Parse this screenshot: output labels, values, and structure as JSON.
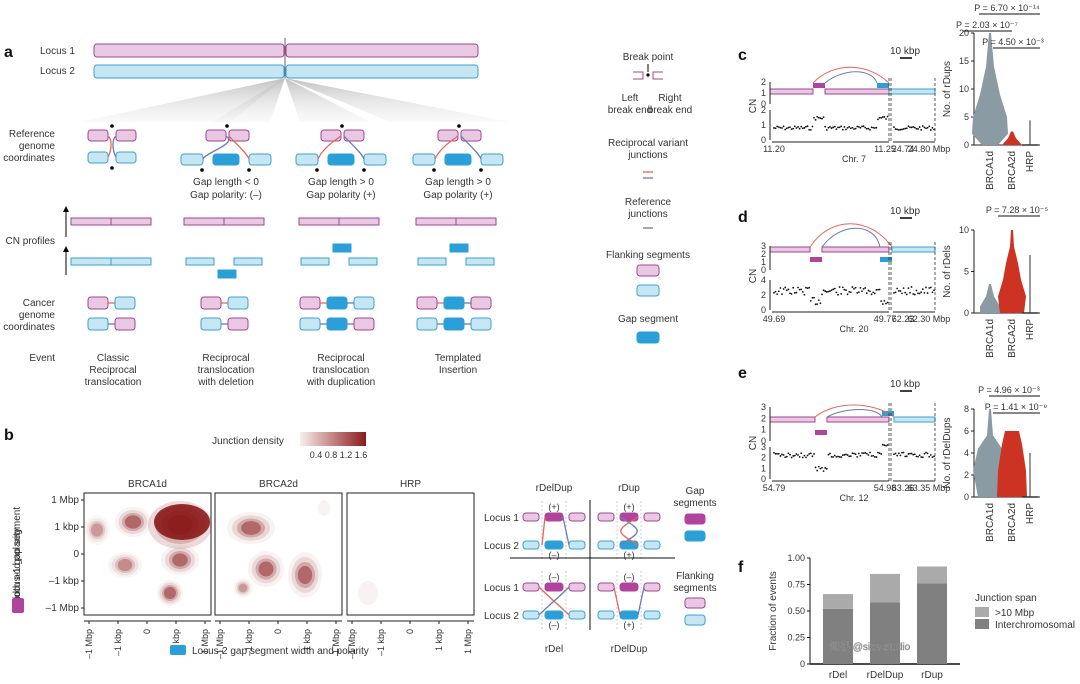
{
  "panel_labels": {
    "a": "a",
    "b": "b",
    "c": "c",
    "d": "d",
    "e": "e",
    "f": "f"
  },
  "colors": {
    "locus1_fill": "#e8c8e3",
    "locus1_stroke": "#a0468f",
    "locus2_fill": "#c6e6f4",
    "locus2_stroke": "#3ba3cf",
    "gap1": "#b0449c",
    "gap2": "#2b9fd8",
    "junction_red": "#e8665a",
    "junction_blue": "#6a7bb8",
    "density_dark": "#8b1a1a",
    "violin_grey": "#8a9ba3",
    "violin_red": "#cc3322",
    "bar_light": "#aaaaaa",
    "bar_dark": "#808080"
  },
  "panel_a": {
    "locus1": "Locus 1",
    "locus2": "Locus 2",
    "rows": {
      "reference": "Reference\ngenome\ncoordinates",
      "cn": "CN profiles",
      "cancer": "Cancer\ngenome\ncoordinates",
      "event": "Event"
    },
    "columns": [
      {
        "gap_length": "",
        "gap_polarity": "",
        "event": [
          "Classic",
          "Reciprocal",
          "translocation"
        ]
      },
      {
        "gap_length": "Gap length < 0",
        "gap_polarity": "Gap polarity: (–)",
        "event": [
          "Reciprocal",
          "translocation",
          "with deletion"
        ]
      },
      {
        "gap_length": "Gap length > 0",
        "gap_polarity": "Gap polarity (+)",
        "event": [
          "Reciprocal",
          "translocation",
          "with duplication"
        ]
      },
      {
        "gap_length": "Gap length > 0",
        "gap_polarity": "Gap polarity (+)",
        "event": [
          "Templated",
          "Insertion"
        ]
      }
    ],
    "legend": {
      "break_point": "Break point",
      "left_break_end": [
        "Left",
        "break end"
      ],
      "right_break_end": [
        "Right",
        "break end"
      ],
      "reciprocal": [
        "Reciprocal variant",
        "junctions"
      ],
      "reference": [
        "Reference",
        "junctions"
      ],
      "flanking": "Flanking segments",
      "gap": "Gap segment"
    }
  },
  "panel_b": {
    "legend_title": "Junction density",
    "legend_ticks": [
      "0.4",
      "0.8",
      "1.2",
      "1.6"
    ],
    "facets": [
      "BRCA1d",
      "BRCA2d",
      "HRP"
    ],
    "y_title": [
      "Locus-1 gap segment",
      "width and polarity"
    ],
    "x_title": "Locus-2 gap segment width and polarity",
    "ticks": [
      "–1 Mbp",
      "–1 kbp",
      "0",
      "1 kbp",
      "1 Mbp"
    ],
    "y_ticks": [
      "1 Mbp",
      "1 kbp",
      "0",
      "–1 kbp",
      "–1 Mbp"
    ],
    "schematic": {
      "top": [
        "rDelDup",
        "rDup"
      ],
      "bottom": [
        "rDel",
        "rDelDup"
      ],
      "locus1": "Locus 1",
      "locus2": "Locus 2",
      "gap_segments": [
        "Gap",
        "segments"
      ],
      "flanking_segments": [
        "Flanking",
        "segments"
      ],
      "signs": {
        "tl_top": "(+)",
        "tl_bot": "(–)",
        "tr_top": "(+)",
        "tr_bot": "(+)",
        "bl_top": "(–)",
        "bl_bot": "(–)",
        "br_top": "(–)",
        "br_bot": "(+)"
      }
    }
  },
  "panel_c": {
    "scale": "10 kbp",
    "ylabel": "CN",
    "chr": "Chr. 7",
    "x_ticks": [
      "11.20",
      "11.25",
      "24.74",
      "24.80 Mbp"
    ],
    "cn_top_ticks": [
      "2",
      "1",
      "0"
    ],
    "cn_bot_ticks": [
      "2",
      "1",
      "0"
    ],
    "violin_ylabel": "No. of rDups",
    "violin_ticks": [
      "20",
      "15",
      "10",
      "5",
      "0"
    ],
    "groups": [
      "BRCA1d",
      "BRCA2d",
      "HRP"
    ],
    "pvalues": [
      "P = 6.70 × 10⁻¹⁴",
      "P = 2.03 × 10⁻⁷",
      "P = 4.50 × 10⁻³"
    ]
  },
  "panel_d": {
    "scale": "10 kbp",
    "ylabel": "CN",
    "chr": "Chr. 20",
    "x_ticks": [
      "49.69",
      "49.77",
      "62.23",
      "62.30 Mbp"
    ],
    "cn_top_ticks": [
      "3",
      "2",
      "1",
      "0"
    ],
    "cn_bot_ticks": [
      "4",
      "2",
      "0"
    ],
    "violin_ylabel": "No. of rDels",
    "violin_ticks": [
      "10",
      "5",
      "0"
    ],
    "groups": [
      "BRCA1d",
      "BRCA2d",
      "HRP"
    ],
    "pvalues": [
      "P = 7.28 × 10⁻⁵"
    ]
  },
  "panel_e": {
    "scale": "10 kbp",
    "ylabel": "CN",
    "chr": "Chr. 12",
    "x_ticks": [
      "54.79",
      "54.98",
      "63.26",
      "63.35 Mbp"
    ],
    "cn_top_ticks": [
      "3",
      "2",
      "1",
      "0"
    ],
    "cn_bot_ticks": [
      "3",
      "2",
      "1",
      "0"
    ],
    "violin_ylabel": "No. of rDelDups",
    "violin_ticks": [
      "8",
      "6",
      "4",
      "2",
      "0"
    ],
    "groups": [
      "BRCA1d",
      "BRCA2d",
      "HRP"
    ],
    "pvalues": [
      "P = 4.96 × 10⁻³",
      "P = 1.41 × 10⁻⁹"
    ]
  },
  "chart_data": [
    {
      "type": "bar",
      "title": "",
      "xlabel": "",
      "ylabel": "Fraction of events",
      "categories": [
        "rDel",
        "rDelDup",
        "rDup"
      ],
      "series": [
        {
          "name": "Interchromosomal",
          "values": [
            0.52,
            0.58,
            0.76
          ]
        },
        {
          "name": ">10 Mbp",
          "values": [
            0.14,
            0.27,
            0.16
          ]
        }
      ],
      "stacked": true,
      "ylim": [
        0,
        1
      ],
      "y_ticks": [
        "0",
        "0.25",
        "0.50",
        "0.75",
        "1.00"
      ],
      "legend_title": "Junction span",
      "legend_placement": "right"
    }
  ],
  "watermark": "知乎 @size studio"
}
